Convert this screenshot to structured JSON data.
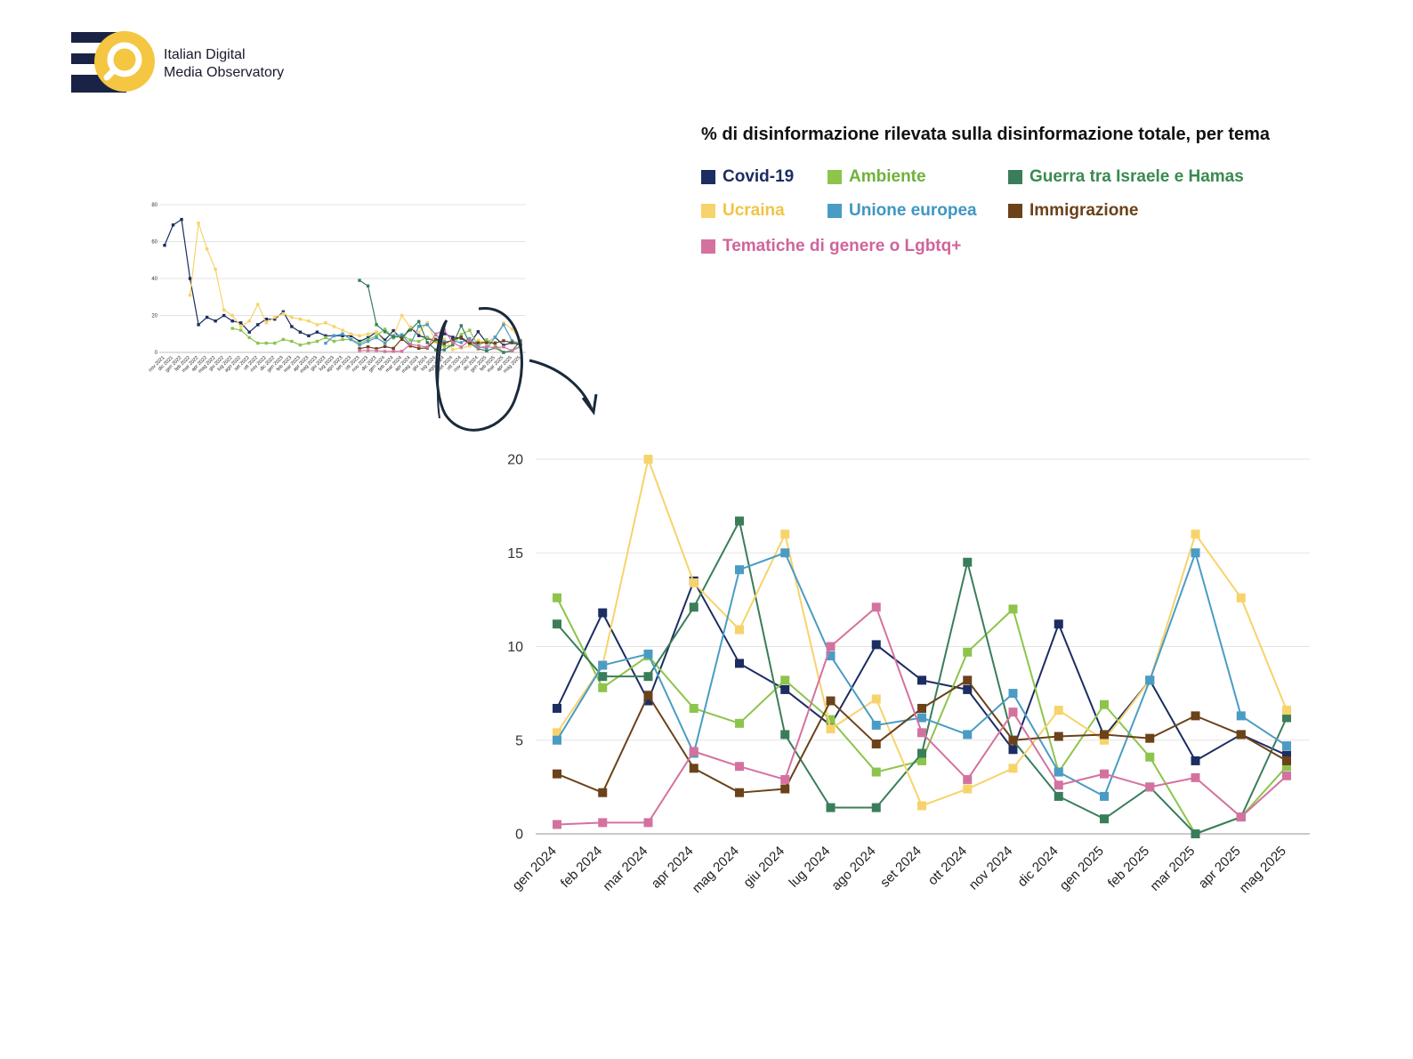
{
  "logo": {
    "line1": "Italian Digital",
    "line2": "Media Observatory",
    "colors": {
      "navy": "#1a2246",
      "yellow": "#f5c642"
    }
  },
  "colors": {
    "Covid-19": "#1c2d62",
    "Ucraina": "#f7d36b",
    "Ambiente": "#8dc44b",
    "Unione europea": "#4a9cc4",
    "Guerra tra Israele e Hamas": "#3a7d5a",
    "Immigrazione": "#6b4219",
    "Tematiche di genere o Lgbtq+": "#d4729f"
  },
  "chart_data": [
    {
      "type": "line",
      "title": "",
      "x": [
        "nov 2021",
        "dic 2021",
        "gen 2022",
        "feb 2022",
        "mar 2022",
        "apr 2022",
        "mag 2022",
        "giu 2022",
        "lug 2022",
        "ago 2022",
        "set 2022",
        "ott 2022",
        "nov 2022",
        "dic 2022",
        "gen 2023",
        "feb 2023",
        "mar 2023",
        "apr 2023",
        "mag 2023",
        "giu 2023",
        "lug 2023",
        "ago 2023",
        "set 2023",
        "ott 2023",
        "nov 2023",
        "dic 2023",
        "gen 2024",
        "feb 2024",
        "mar 2024",
        "apr 2024",
        "mag 2024",
        "giu 2024",
        "lug 2024",
        "ago 2024",
        "set 2024",
        "ott 2024",
        "nov 2024",
        "dic 2024",
        "gen 2025",
        "feb 2025",
        "mar 2025",
        "apr 2025",
        "mag 2025"
      ],
      "yticks": [
        0,
        20,
        40,
        60,
        80
      ],
      "ylim": [
        0,
        80
      ],
      "series": [
        {
          "name": "Covid-19",
          "values": [
            58,
            69,
            72,
            40,
            15,
            19,
            17,
            20,
            17,
            16,
            11,
            15,
            18,
            18,
            22,
            14,
            11,
            9,
            11,
            9,
            9,
            9,
            9,
            6,
            8,
            11,
            6.7,
            11.8,
            7.1,
            13.5,
            9.1,
            7.7,
            5.8,
            10.1,
            8.2,
            7.7,
            4.5,
            11.2,
            5.2,
            8.2,
            3.9,
            5.3,
            4.2
          ]
        },
        {
          "name": "Ucraina",
          "values": [
            null,
            null,
            null,
            31,
            70,
            56,
            45,
            23,
            20,
            14,
            17,
            26,
            16,
            19,
            21,
            19,
            18,
            17,
            15,
            16,
            14,
            12,
            10,
            9,
            10,
            11,
            5.4,
            9,
            20,
            13.4,
            10.9,
            16,
            5.6,
            7.2,
            1.5,
            2.4,
            3.5,
            6.6,
            5,
            8.2,
            16,
            12.6,
            6.6
          ]
        },
        {
          "name": "Ambiente",
          "values": [
            null,
            null,
            null,
            null,
            null,
            null,
            null,
            null,
            13,
            12,
            8,
            5,
            5,
            5,
            7,
            6,
            4,
            5,
            6,
            8,
            6,
            7,
            7,
            5,
            7,
            9,
            12.6,
            7.8,
            9.5,
            6.7,
            5.9,
            8.2,
            6.1,
            3.3,
            3.9,
            9.7,
            12,
            3.3,
            6.9,
            4.1,
            0,
            0.9,
            3.6
          ]
        },
        {
          "name": "Unione europea",
          "values": [
            null,
            null,
            null,
            null,
            null,
            null,
            null,
            null,
            null,
            null,
            null,
            null,
            null,
            null,
            null,
            null,
            null,
            null,
            null,
            5,
            9,
            10,
            7,
            4,
            6,
            8,
            5,
            9,
            9.6,
            4.3,
            14.1,
            15,
            9.5,
            5.8,
            6.2,
            5.3,
            7.5,
            3.3,
            2,
            8.2,
            15,
            6.3,
            4.7
          ]
        },
        {
          "name": "Guerra tra Israele e Hamas",
          "values": [
            null,
            null,
            null,
            null,
            null,
            null,
            null,
            null,
            null,
            null,
            null,
            null,
            null,
            null,
            null,
            null,
            null,
            null,
            null,
            null,
            null,
            null,
            null,
            39,
            36,
            15,
            11.2,
            8.4,
            8.4,
            12.1,
            16.7,
            5.3,
            1.4,
            1.4,
            4.3,
            14.5,
            5,
            2,
            0.8,
            2.5,
            0,
            0.9,
            6.2
          ]
        },
        {
          "name": "Immigrazione",
          "values": [
            null,
            null,
            null,
            null,
            null,
            null,
            null,
            null,
            null,
            null,
            null,
            null,
            null,
            null,
            null,
            null,
            null,
            null,
            null,
            null,
            null,
            null,
            null,
            2,
            3,
            2,
            3.2,
            2.2,
            7.4,
            3.5,
            2.2,
            2.4,
            7.1,
            4.8,
            6.7,
            8.2,
            5,
            5.2,
            5.3,
            5.1,
            6.3,
            5.3,
            3.9
          ]
        },
        {
          "name": "Tematiche di genere o Lgbtq+",
          "values": [
            null,
            null,
            null,
            null,
            null,
            null,
            null,
            null,
            null,
            null,
            null,
            null,
            null,
            null,
            null,
            null,
            null,
            null,
            null,
            null,
            null,
            null,
            null,
            1,
            1,
            1,
            0.5,
            0.6,
            0.6,
            4.4,
            3.6,
            2.9,
            10,
            12.1,
            5.4,
            2.9,
            6.5,
            2.6,
            3.2,
            2.5,
            3,
            0.9,
            3.1
          ]
        }
      ]
    },
    {
      "type": "line",
      "title": "% di disinformazione rilevata sulla disinformazione totale, per tema",
      "xlabel": "",
      "ylabel": "",
      "categories": [
        "gen 2024",
        "feb 2024",
        "mar 2024",
        "apr 2024",
        "mag 2024",
        "giu 2024",
        "lug 2024",
        "ago 2024",
        "set 2024",
        "ott 2024",
        "nov 2024",
        "dic 2024",
        "gen 2025",
        "feb 2025",
        "mar 2025",
        "apr 2025",
        "mag 2025"
      ],
      "yticks": [
        0,
        5,
        10,
        15,
        20
      ],
      "ylim": [
        0,
        20
      ],
      "grid": true,
      "legend": "top",
      "series": [
        {
          "name": "Covid-19",
          "values": [
            6.7,
            11.8,
            7.1,
            13.5,
            9.1,
            7.7,
            5.8,
            10.1,
            8.2,
            7.7,
            4.5,
            11.2,
            5.2,
            8.2,
            3.9,
            5.3,
            4.2
          ]
        },
        {
          "name": "Ambiente",
          "values": [
            12.6,
            7.8,
            9.5,
            6.7,
            5.9,
            8.2,
            6.1,
            3.3,
            3.9,
            9.7,
            12,
            3.3,
            6.9,
            4.1,
            0,
            0.9,
            3.6
          ]
        },
        {
          "name": "Guerra tra Israele e Hamas",
          "values": [
            11.2,
            8.4,
            8.4,
            12.1,
            16.7,
            5.3,
            1.4,
            1.4,
            4.3,
            14.5,
            5,
            2,
            0.8,
            2.5,
            0,
            0.9,
            6.2
          ]
        },
        {
          "name": "Ucraina",
          "values": [
            5.4,
            9,
            20,
            13.4,
            10.9,
            16,
            5.6,
            7.2,
            1.5,
            2.4,
            3.5,
            6.6,
            5,
            8.2,
            16,
            12.6,
            6.6
          ]
        },
        {
          "name": "Unione europea",
          "values": [
            5,
            9,
            9.6,
            4.3,
            14.1,
            15,
            9.5,
            5.8,
            6.2,
            5.3,
            7.5,
            3.3,
            2,
            8.2,
            15,
            6.3,
            4.7
          ]
        },
        {
          "name": "Immigrazione",
          "values": [
            3.2,
            2.2,
            7.4,
            3.5,
            2.2,
            2.4,
            7.1,
            4.8,
            6.7,
            8.2,
            5,
            5.2,
            5.3,
            5.1,
            6.3,
            5.3,
            3.9
          ]
        },
        {
          "name": "Tematiche di genere o Lgbtq+",
          "values": [
            0.5,
            0.6,
            0.6,
            4.4,
            3.6,
            2.9,
            10,
            12.1,
            5.4,
            2.9,
            6.5,
            2.6,
            3.2,
            2.5,
            3,
            0.9,
            3.1
          ]
        }
      ]
    }
  ]
}
